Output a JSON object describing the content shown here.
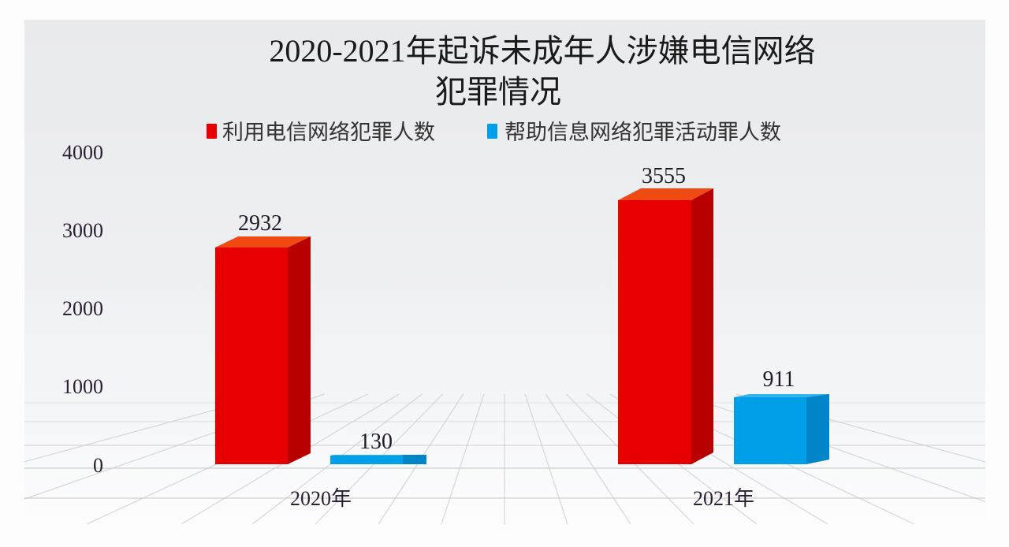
{
  "title": {
    "line1": "2020-2021年起诉未成年人涉嫌电信网络",
    "line2": "犯罪情况"
  },
  "legend": [
    {
      "label": "利用电信网络犯罪人数",
      "color": "#e60000"
    },
    {
      "label": "帮助信息网络犯罪活动罪人数",
      "color": "#00a0e9"
    }
  ],
  "y_axis": {
    "ticks": [
      "4000",
      "3000",
      "2000",
      "1000",
      "0"
    ]
  },
  "x_axis": {
    "categories": [
      "2020年",
      "2021年"
    ]
  },
  "data_labels": {
    "s0": [
      "2932",
      "3555"
    ],
    "s1": [
      "130",
      "911"
    ]
  },
  "colors": {
    "red_front": "#e60000",
    "red_side": "#b80000",
    "red_top": "#f04a12",
    "blue_front": "#00a0e9",
    "blue_side": "#0085c8",
    "blue_top": "#33b4ee",
    "grid": "#c9cbce"
  },
  "chart_data": {
    "type": "bar",
    "title": "2020-2021年起诉未成年人涉嫌电信网络犯罪情况",
    "categories": [
      "2020年",
      "2021年"
    ],
    "series": [
      {
        "name": "利用电信网络犯罪人数",
        "values": [
          2932,
          3555
        ],
        "color": "#e60000"
      },
      {
        "name": "帮助信息网络犯罪活动罪人数",
        "values": [
          130,
          911
        ],
        "color": "#00a0e9"
      }
    ],
    "xlabel": "",
    "ylabel": "",
    "ylim": [
      0,
      4000
    ],
    "yticks": [
      0,
      1000,
      2000,
      3000,
      4000
    ],
    "grid": true,
    "legend_position": "top",
    "style": "3d-column"
  }
}
